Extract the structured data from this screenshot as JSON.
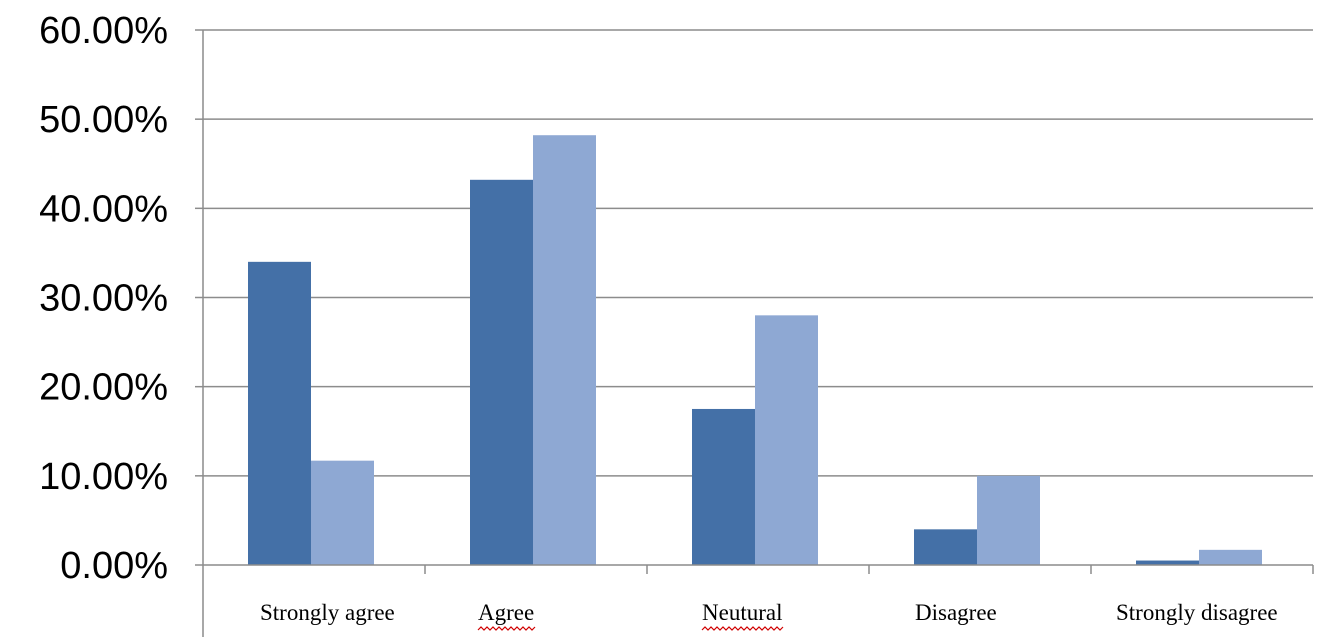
{
  "chart_data": {
    "type": "bar",
    "title": "",
    "xlabel": "",
    "ylabel": "",
    "categories": [
      "Strongly agree",
      "Agree",
      "Neutural",
      "Disagree",
      "Strongly disagree"
    ],
    "series": [
      {
        "values": [
          0.34,
          0.432,
          0.175,
          0.04,
          0.005
        ]
      },
      {
        "values": [
          0.117,
          0.482,
          0.28,
          0.1,
          0.017
        ]
      }
    ],
    "ylim": [
      0,
      0.6
    ],
    "y_ticks": [
      "0.00%",
      "10.00%",
      "20.00%",
      "30.00%",
      "40.00%",
      "50.00%",
      "60.00%"
    ],
    "grid": true,
    "legend": "none",
    "colors": {
      "series_1": "#4470a7",
      "series_2": "#8ea8d3",
      "gridline": "#8c8c8c",
      "axis": "#8c8c8c",
      "spellcheck_underline": "#d00000"
    },
    "spellcheck_underlined_labels": [
      "Agree",
      "Neutural"
    ]
  }
}
